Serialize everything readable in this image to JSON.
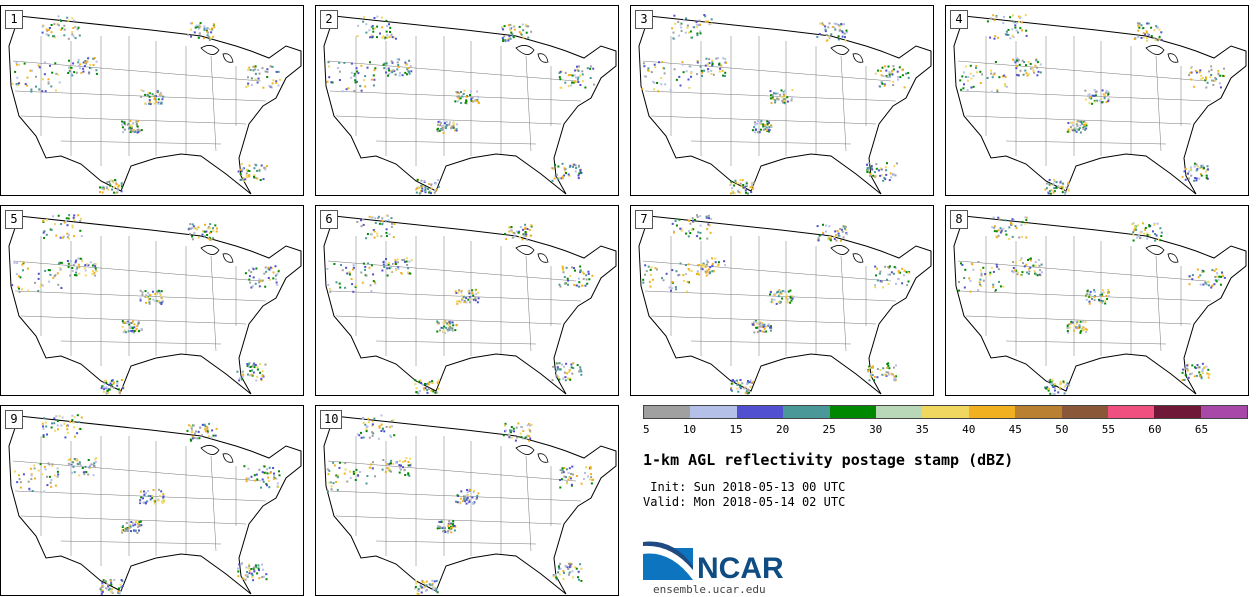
{
  "panels": [
    {
      "label": "1"
    },
    {
      "label": "2"
    },
    {
      "label": "3"
    },
    {
      "label": "4"
    },
    {
      "label": "5"
    },
    {
      "label": "6"
    },
    {
      "label": "7"
    },
    {
      "label": "8"
    },
    {
      "label": "9"
    },
    {
      "label": "10"
    }
  ],
  "colorbar": {
    "colors": [
      "#a0a0a0",
      "#b4c0e8",
      "#5050d0",
      "#4a9898",
      "#008800",
      "#b8d8b8",
      "#f0d860",
      "#f0b020",
      "#b88030",
      "#8a5838",
      "#f05080",
      "#701838",
      "#a848a8"
    ],
    "ticks": [
      "5",
      "10",
      "15",
      "20",
      "25",
      "30",
      "35",
      "40",
      "45",
      "50",
      "55",
      "60",
      "65"
    ]
  },
  "title": "1-km AGL reflectivity postage stamp (dBZ)",
  "init_line": " Init: Sun 2018-05-13 00 UTC",
  "valid_line": "Valid: Mon 2018-05-14 02 UTC",
  "logo": {
    "name": "NCAR",
    "url": "ensemble.ucar.edu"
  }
}
